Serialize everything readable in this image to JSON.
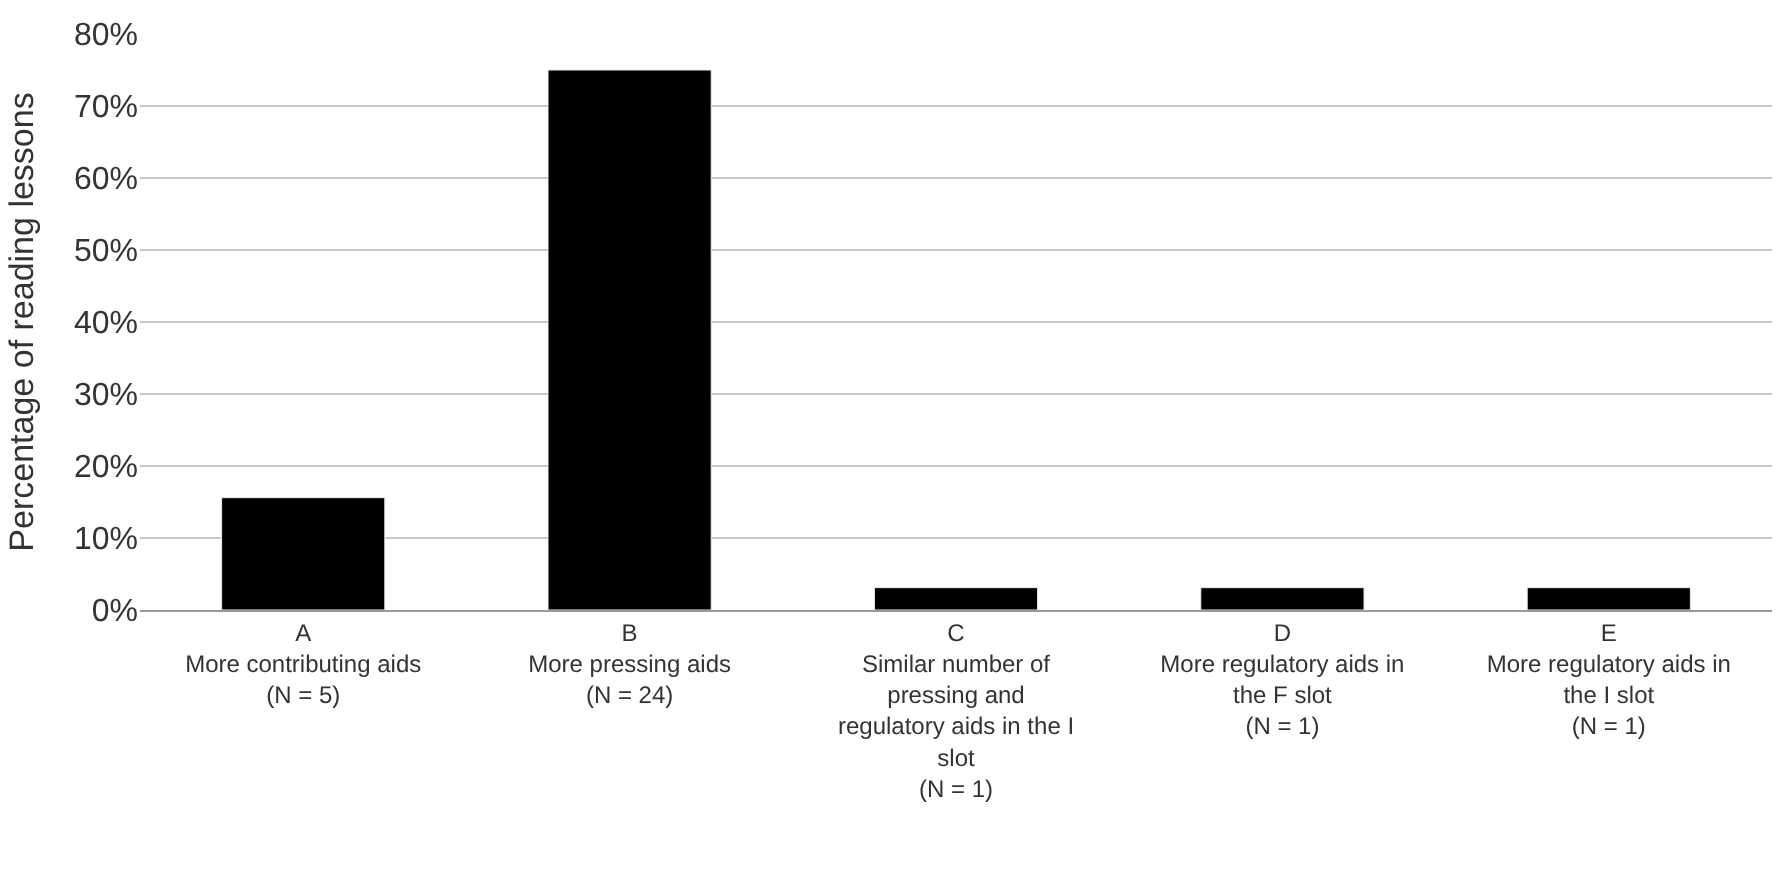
{
  "chart_data": {
    "type": "bar",
    "ylabel": "Percentage of reading lessons",
    "categories": [
      "A\nMore contributing aids\n(N = 5)",
      "B\nMore pressing aids\n(N = 24)",
      "C\nSimilar number of\npressing and\nregulatory aids in the I\nslot\n(N = 1)",
      "D\nMore regulatory aids in\nthe F slot\n(N = 1)",
      "E\nMore regulatory aids in\nthe I slot\n(N = 1)"
    ],
    "values": [
      15.6,
      75,
      3.1,
      3.1,
      3.1
    ],
    "color": "#000000",
    "ylim": [
      0,
      80
    ],
    "yticks": [
      {
        "value": 0,
        "label": "0%"
      },
      {
        "value": 10,
        "label": "10%"
      },
      {
        "value": 20,
        "label": "20%"
      },
      {
        "value": 30,
        "label": "30%"
      },
      {
        "value": 40,
        "label": "40%"
      },
      {
        "value": 50,
        "label": "50%"
      },
      {
        "value": 60,
        "label": "60%"
      },
      {
        "value": 70,
        "label": "70%"
      },
      {
        "value": 80,
        "label": "80%"
      }
    ],
    "grid": "y"
  }
}
